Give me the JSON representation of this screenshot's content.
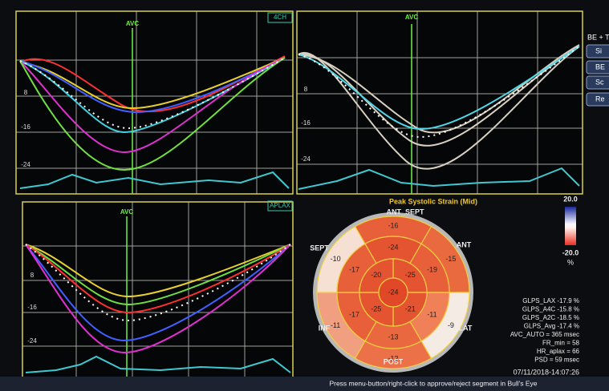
{
  "panels": [
    {
      "tag": "4CH",
      "marker": "AVC",
      "yticks": [
        "8",
        "-16",
        "-24"
      ]
    },
    {
      "tag": "",
      "marker": "AVC",
      "yticks": [
        "8",
        "-16",
        "-24"
      ]
    },
    {
      "tag": "APLAX",
      "marker": "AVC",
      "yticks": [
        "8",
        "-16",
        "-24"
      ]
    }
  ],
  "side_buttons": [
    "BE + T",
    "Si",
    "BE",
    "Sc",
    "Re"
  ],
  "bullseye": {
    "title": "Peak Systolic Strain (Mid)",
    "scale": {
      "max": "20.0",
      "min": "-20.0",
      "unit": "%"
    },
    "walls": [
      "ANT_SEPT",
      "ANT",
      "LAT",
      "POST",
      "INF",
      "SEPT"
    ],
    "outer": [
      -16,
      -15,
      -9,
      -12,
      -11,
      -10
    ],
    "mid": [
      -24,
      -19,
      -11,
      -13,
      -17,
      -17
    ],
    "inner": [
      -25,
      -21,
      -25,
      -20
    ],
    "apex": -24
  },
  "stats": [
    "GLPS_LAX -17.9 %",
    "GLPS_A4C -15.8 %",
    "GLPS_A2C -18.5 %",
    "GLPS_Avg -17.4 %",
    "AVC_AUTO = 365 msec",
    "FR_min = 58",
    "HR_aplax = 66",
    "PSD = 59 msec"
  ],
  "timestamp": "07/11/2018-14:07:26",
  "status_bar": "Press menu-button/right-click to approve/reject segment in Bull's Eye"
}
